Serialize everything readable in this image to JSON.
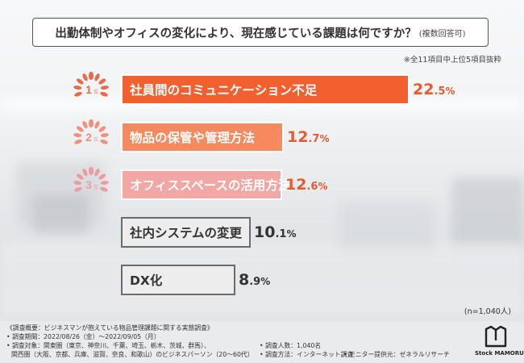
{
  "question": {
    "main": "出勤体制やオフィスの変化により、現在感じている課題は何ですか？",
    "sub": "(複数回答可)"
  },
  "sample_note": "※全11項目中上位5項目抜粋",
  "n_note": "(n=1,040人)",
  "ranks": [
    {
      "num": "1",
      "suffix": "位",
      "color": "#e86a4a"
    },
    {
      "num": "2",
      "suffix": "位",
      "color": "#f0907a"
    },
    {
      "num": "3",
      "suffix": "位",
      "color": "#ee9aa0"
    }
  ],
  "chart_data": {
    "type": "bar",
    "orientation": "horizontal",
    "categories": [
      "社員間のコミュニケーション不足",
      "物品の保管や管理方法",
      "オフィススペースの活用方法",
      "社内システムの変更",
      "DX化"
    ],
    "values": [
      22.5,
      12.7,
      12.6,
      10.1,
      8.9
    ],
    "value_labels": [
      {
        "int": "22",
        "dec": ".5",
        "pct": "%"
      },
      {
        "int": "12",
        "dec": ".7",
        "pct": "%"
      },
      {
        "int": "12",
        "dec": ".6",
        "pct": "%"
      },
      {
        "int": "10",
        "dec": ".1",
        "pct": "%"
      },
      {
        "int": "8",
        "dec": ".9",
        "pct": "%"
      }
    ],
    "bar_colors": [
      "#f2602f",
      "#f7895e",
      "#f1a7a4",
      "#ededed",
      "#ededed"
    ],
    "label_colors": [
      "#ffffff",
      "#ffffff",
      "#ffffff",
      "#333333",
      "#333333"
    ],
    "value_colors": [
      "#e85a2f",
      "#e85a2f",
      "#e85a2f",
      "#333333",
      "#333333"
    ],
    "unit": "%",
    "grid": false,
    "legend": "none"
  },
  "footer": {
    "line1": "《調査概要：ビジネスマンが抱えている物品管理課題に関する実態調査》",
    "line2": "• 調査期間：2022/08/26（金）～2022/09/05（月）",
    "line3a": "• 調査対象：関東圏（東京、神奈川、千葉、埼玉、栃木、茨城、群馬）、",
    "line3b": "• 調査人数：1,040名",
    "line4a": "関西圏（大阪、京都、兵庫、滋賀、奈良、和歌山）のビジネスパーソン（20～60代）",
    "line4b": "• 調査方法：インターネット調査",
    "line4c": "• モニター提供元：ゼネラルリサーチ"
  },
  "logo": {
    "text": "Stock MAMORU"
  }
}
